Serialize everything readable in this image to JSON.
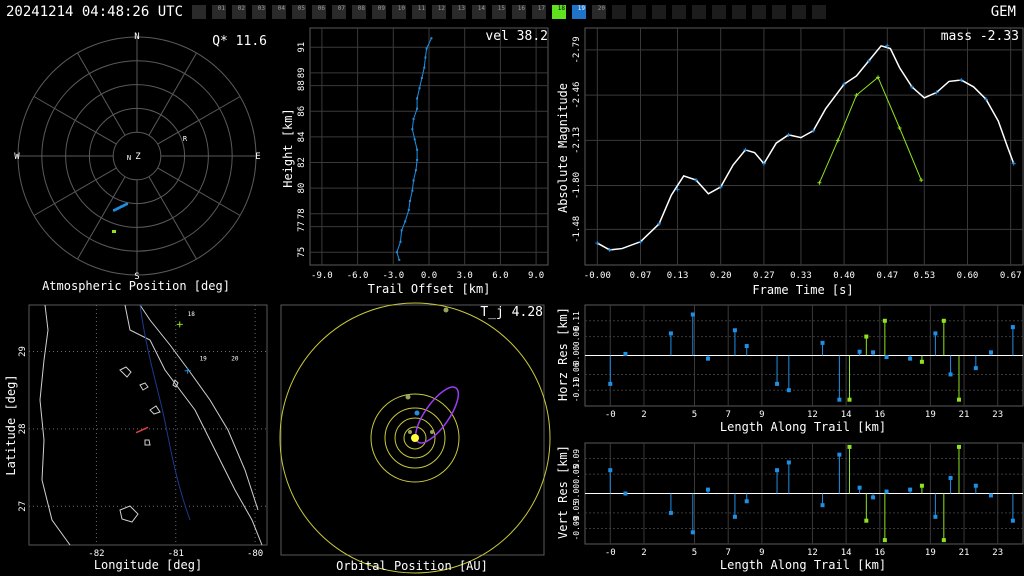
{
  "header": {
    "timestamp": "20241214 04:48:26 UTC",
    "network": "GEM",
    "cameras": [
      {
        "label": "",
        "state": "off"
      },
      {
        "label": "01",
        "state": "off"
      },
      {
        "label": "02",
        "state": "off"
      },
      {
        "label": "03",
        "state": "off"
      },
      {
        "label": "04",
        "state": "off"
      },
      {
        "label": "05",
        "state": "off"
      },
      {
        "label": "06",
        "state": "off"
      },
      {
        "label": "07",
        "state": "off"
      },
      {
        "label": "08",
        "state": "off"
      },
      {
        "label": "09",
        "state": "off"
      },
      {
        "label": "10",
        "state": "off"
      },
      {
        "label": "11",
        "state": "off"
      },
      {
        "label": "12",
        "state": "off"
      },
      {
        "label": "13",
        "state": "off"
      },
      {
        "label": "14",
        "state": "off"
      },
      {
        "label": "15",
        "state": "off"
      },
      {
        "label": "16",
        "state": "off"
      },
      {
        "label": "17",
        "state": "off"
      },
      {
        "label": "18",
        "state": "green"
      },
      {
        "label": "19",
        "state": "blue"
      },
      {
        "label": "20",
        "state": "off"
      },
      {
        "label": "",
        "state": "empty"
      },
      {
        "label": "",
        "state": "empty"
      },
      {
        "label": "",
        "state": "empty"
      },
      {
        "label": "",
        "state": "empty"
      },
      {
        "label": "",
        "state": "empty"
      },
      {
        "label": "",
        "state": "empty"
      },
      {
        "label": "",
        "state": "empty"
      },
      {
        "label": "",
        "state": "empty"
      },
      {
        "label": "",
        "state": "empty"
      },
      {
        "label": "",
        "state": "empty"
      },
      {
        "label": "",
        "state": "empty"
      }
    ]
  },
  "colors": {
    "station_a": "#1f8fe3",
    "station_b": "#8fe31f",
    "fit": "#ffffff",
    "grid": "#5a5a5a",
    "orbit_earth": "#c8c83c",
    "orbit_meteor": "#9b3cf0"
  },
  "chart_data": [
    {
      "id": "polar",
      "type": "scatter",
      "title": "",
      "xlabel": "Atmospheric Position [deg]",
      "annotation": "Q* 11.6",
      "directions": {
        "n": "N",
        "s": "S",
        "e": "E",
        "w": "W"
      },
      "markers": [
        "R",
        "N",
        "Z"
      ]
    },
    {
      "id": "height",
      "type": "scatter",
      "xlabel": "Trail Offset [km]",
      "ylabel": "Height [km]",
      "annotation": "vel 38.2",
      "x_ticks": [
        "-9.0",
        "-6.0",
        "-3.0",
        "0.0",
        "3.0",
        "6.0",
        "9.0"
      ],
      "y_ticks": [
        "75",
        "77",
        "78",
        "80",
        "82",
        "84",
        "86",
        "88",
        "89",
        "91"
      ],
      "xlim": [
        -10,
        10
      ],
      "ylim": [
        74,
        92.5
      ],
      "series": [
        {
          "points": [
            [
              -2.5,
              74.4
            ],
            [
              -2.7,
              75
            ],
            [
              -2.4,
              75.8
            ],
            [
              -2.3,
              76.7
            ],
            [
              -2.0,
              77.4
            ],
            [
              -1.7,
              78.3
            ],
            [
              -1.6,
              79
            ],
            [
              -1.4,
              79.8
            ],
            [
              -1.3,
              80.6
            ],
            [
              -1.1,
              81.4
            ],
            [
              -1.0,
              82.2
            ],
            [
              -1.0,
              83
            ],
            [
              -1.2,
              83.8
            ],
            [
              -1.4,
              84.6
            ],
            [
              -1.3,
              85.4
            ],
            [
              -1.0,
              86.2
            ],
            [
              -1.0,
              87
            ],
            [
              -0.8,
              87.8
            ],
            [
              -0.6,
              88.6
            ],
            [
              -0.4,
              89.4
            ],
            [
              -0.3,
              90.2
            ],
            [
              -0.2,
              90.9
            ],
            [
              0.2,
              91.7
            ]
          ]
        }
      ]
    },
    {
      "id": "magnitude",
      "type": "line",
      "xlabel": "Frame Time [s]",
      "ylabel": "Absolute Magnitude",
      "annotation": "mass -2.33",
      "x_ticks": [
        "-0.00",
        "0.07",
        "0.13",
        "0.20",
        "0.27",
        "0.33",
        "0.40",
        "0.47",
        "0.53",
        "0.60",
        "0.67"
      ],
      "y_ticks": [
        "-1.48",
        "-1.80",
        "-2.13",
        "-2.46",
        "-2.79"
      ],
      "xlim": [
        -0.02,
        0.69
      ],
      "ylim": [
        -1.22,
        -2.95
      ],
      "fit": [
        [
          0,
          -1.38
        ],
        [
          0.02,
          -1.33
        ],
        [
          0.04,
          -1.34
        ],
        [
          0.07,
          -1.39
        ],
        [
          0.1,
          -1.52
        ],
        [
          0.12,
          -1.73
        ],
        [
          0.14,
          -1.87
        ],
        [
          0.16,
          -1.84
        ],
        [
          0.18,
          -1.74
        ],
        [
          0.2,
          -1.79
        ],
        [
          0.22,
          -1.95
        ],
        [
          0.24,
          -2.06
        ],
        [
          0.255,
          -2.04
        ],
        [
          0.27,
          -1.96
        ],
        [
          0.29,
          -2.11
        ],
        [
          0.31,
          -2.17
        ],
        [
          0.33,
          -2.15
        ],
        [
          0.35,
          -2.2
        ],
        [
          0.37,
          -2.36
        ],
        [
          0.4,
          -2.54
        ],
        [
          0.42,
          -2.6
        ],
        [
          0.44,
          -2.71
        ],
        [
          0.46,
          -2.82
        ],
        [
          0.475,
          -2.8
        ],
        [
          0.49,
          -2.66
        ],
        [
          0.51,
          -2.52
        ],
        [
          0.53,
          -2.44
        ],
        [
          0.55,
          -2.48
        ],
        [
          0.57,
          -2.56
        ],
        [
          0.59,
          -2.57
        ],
        [
          0.61,
          -2.52
        ],
        [
          0.63,
          -2.43
        ],
        [
          0.65,
          -2.27
        ],
        [
          0.665,
          -2.08
        ],
        [
          0.675,
          -1.96
        ]
      ],
      "series": [
        {
          "points": [
            [
              0,
              -1.38
            ],
            [
              0.02,
              -1.33
            ],
            [
              0.07,
              -1.39
            ],
            [
              0.1,
              -1.52
            ],
            [
              0.13,
              -1.77
            ],
            [
              0.16,
              -1.84
            ],
            [
              0.2,
              -1.79
            ],
            [
              0.24,
              -2.06
            ],
            [
              0.27,
              -1.96
            ],
            [
              0.31,
              -2.17
            ],
            [
              0.35,
              -2.2
            ],
            [
              0.4,
              -2.54
            ],
            [
              0.44,
              -2.71
            ],
            [
              0.47,
              -2.82
            ],
            [
              0.51,
              -2.52
            ],
            [
              0.55,
              -2.48
            ],
            [
              0.59,
              -2.57
            ],
            [
              0.63,
              -2.43
            ],
            [
              0.675,
              -1.96
            ]
          ]
        },
        {
          "points": [
            [
              0.36,
              -1.82
            ],
            [
              0.39,
              -2.13
            ],
            [
              0.42,
              -2.46
            ],
            [
              0.455,
              -2.59
            ],
            [
              0.49,
              -2.22
            ],
            [
              0.525,
              -1.84
            ]
          ]
        }
      ]
    },
    {
      "id": "map",
      "type": "scatter",
      "xlabel": "Longitude [deg]",
      "ylabel": "Latitude [deg]",
      "x_ticks": [
        "-82",
        "-81",
        "-80"
      ],
      "y_ticks": [
        "27",
        "28",
        "29"
      ],
      "xlim": [
        -82.85,
        -79.85
      ],
      "ylim": [
        26.5,
        29.6
      ],
      "station_labels": [
        "19",
        "20",
        "18"
      ]
    },
    {
      "id": "orbit",
      "type": "scatter",
      "xlabel": "Orbital Position [AU]",
      "annotation": "T_j 4.28"
    },
    {
      "id": "horz",
      "type": "scatter",
      "xlabel": "Length Along Trail [km]",
      "ylabel": "Horz Res [km]",
      "x_ticks": [
        "-0",
        "2",
        "5",
        "7",
        "9",
        "12",
        "14",
        "16",
        "19",
        "21",
        "23"
      ],
      "y_ticks": [
        "0.11",
        "0.06",
        "0.00",
        "-0.06",
        "-0.11"
      ],
      "xlim": [
        -1.5,
        24.5
      ],
      "ylim": [
        -0.16,
        0.16
      ],
      "series": [
        {
          "points": [
            [
              0,
              -0.09
            ],
            [
              0.9,
              0.005
            ],
            [
              3.6,
              0.07
            ],
            [
              4.9,
              0.13
            ],
            [
              5.8,
              -0.01
            ],
            [
              7.4,
              0.08
            ],
            [
              8.1,
              0.03
            ],
            [
              9.9,
              -0.09
            ],
            [
              10.6,
              -0.11
            ],
            [
              12.6,
              0.04
            ],
            [
              13.6,
              -0.14
            ],
            [
              14.8,
              0.012
            ],
            [
              15.6,
              0.01
            ],
            [
              16.4,
              -0.005
            ],
            [
              17.8,
              -0.01
            ],
            [
              19.3,
              0.07
            ],
            [
              20.2,
              -0.06
            ],
            [
              21.7,
              -0.04
            ],
            [
              22.6,
              0.01
            ],
            [
              23.9,
              0.09
            ]
          ]
        },
        {
          "points": [
            [
              14.2,
              -0.14
            ],
            [
              15.2,
              0.06
            ],
            [
              16.3,
              0.11
            ],
            [
              18.5,
              -0.02
            ],
            [
              19.8,
              0.11
            ],
            [
              20.7,
              -0.14
            ]
          ]
        }
      ]
    },
    {
      "id": "vert",
      "type": "scatter",
      "xlabel": "Length Along Trail [km]",
      "ylabel": "Vert Res [km]",
      "x_ticks": [
        "-0",
        "2",
        "5",
        "7",
        "9",
        "12",
        "14",
        "16",
        "19",
        "21",
        "23"
      ],
      "y_ticks": [
        "0.09",
        "0.05",
        "0.00",
        "-0.05",
        "-0.09"
      ],
      "xlim": [
        -1.5,
        24.5
      ],
      "ylim": [
        -0.13,
        0.13
      ],
      "series": [
        {
          "points": [
            [
              0,
              0.06
            ],
            [
              0.9,
              0.0
            ],
            [
              3.6,
              -0.05
            ],
            [
              4.9,
              -0.1
            ],
            [
              5.8,
              0.01
            ],
            [
              7.4,
              -0.06
            ],
            [
              8.1,
              -0.02
            ],
            [
              9.9,
              0.06
            ],
            [
              10.6,
              0.08
            ],
            [
              12.6,
              -0.03
            ],
            [
              13.6,
              0.1
            ],
            [
              14.8,
              0.015
            ],
            [
              15.6,
              -0.01
            ],
            [
              16.4,
              0.005
            ],
            [
              17.8,
              0.01
            ],
            [
              19.3,
              -0.06
            ],
            [
              20.2,
              0.04
            ],
            [
              21.7,
              0.02
            ],
            [
              22.6,
              -0.005
            ],
            [
              23.9,
              -0.07
            ]
          ]
        },
        {
          "points": [
            [
              14.2,
              0.12
            ],
            [
              15.2,
              -0.07
            ],
            [
              16.3,
              -0.12
            ],
            [
              18.5,
              0.02
            ],
            [
              19.8,
              -0.12
            ],
            [
              20.7,
              0.12
            ]
          ]
        }
      ]
    }
  ]
}
